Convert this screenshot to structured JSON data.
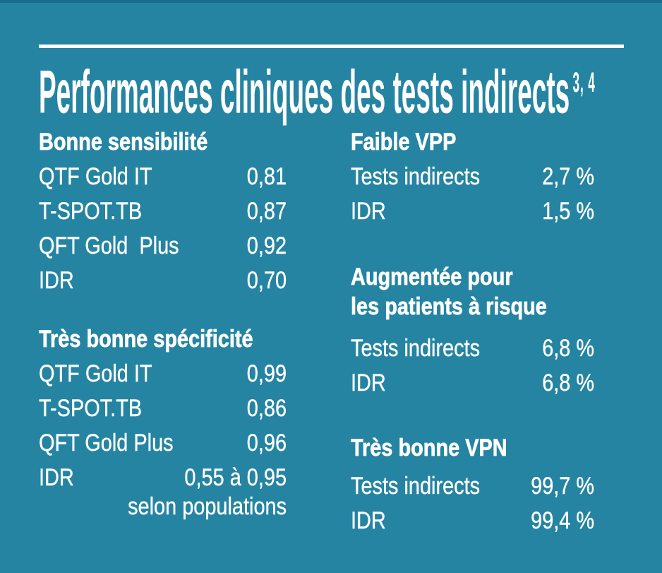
{
  "colors": {
    "background": "#2484A2",
    "top_edge": "#186F8D",
    "text": "#FFFFFF",
    "rule": "#FFFFFF"
  },
  "title": {
    "text": "Performances cliniques des tests indirects",
    "superscript": "3, 4"
  },
  "columns": [
    {
      "sections": [
        {
          "heading": "Bonne sensibilité",
          "rows": [
            {
              "label": "QTF Gold IT",
              "value": "0,81"
            },
            {
              "label": "T-SPOT.TB",
              "value": "0,87"
            },
            {
              "label": "QFT Gold  Plus",
              "value": "0,92"
            },
            {
              "label": "IDR",
              "value": "0,70"
            }
          ]
        },
        {
          "heading": "Très bonne spécificité",
          "rows": [
            {
              "label": "QTF Gold IT",
              "value": "0,99"
            },
            {
              "label": "T-SPOT.TB",
              "value": "0,86"
            },
            {
              "label": "QFT Gold Plus",
              "value": "0,96"
            },
            {
              "label": "IDR",
              "value": "0,55 à 0,95"
            }
          ],
          "footnote": "selon populations"
        }
      ]
    },
    {
      "sections": [
        {
          "heading": "Faible VPP",
          "rows": [
            {
              "label": "Tests indirects",
              "value": "2,7 %"
            },
            {
              "label": "IDR",
              "value": "1,5 %"
            }
          ]
        },
        {
          "heading": "Augmentée pour\nles patients à risque",
          "rows": [
            {
              "label": "Tests indirects",
              "value": "6,8 %"
            },
            {
              "label": "IDR",
              "value": "6,8 %"
            }
          ]
        },
        {
          "heading": "Très bonne VPN",
          "rows": [
            {
              "label": "Tests indirects",
              "value": "99,7 %"
            },
            {
              "label": "IDR",
              "value": "99,4 %"
            }
          ]
        }
      ]
    }
  ]
}
